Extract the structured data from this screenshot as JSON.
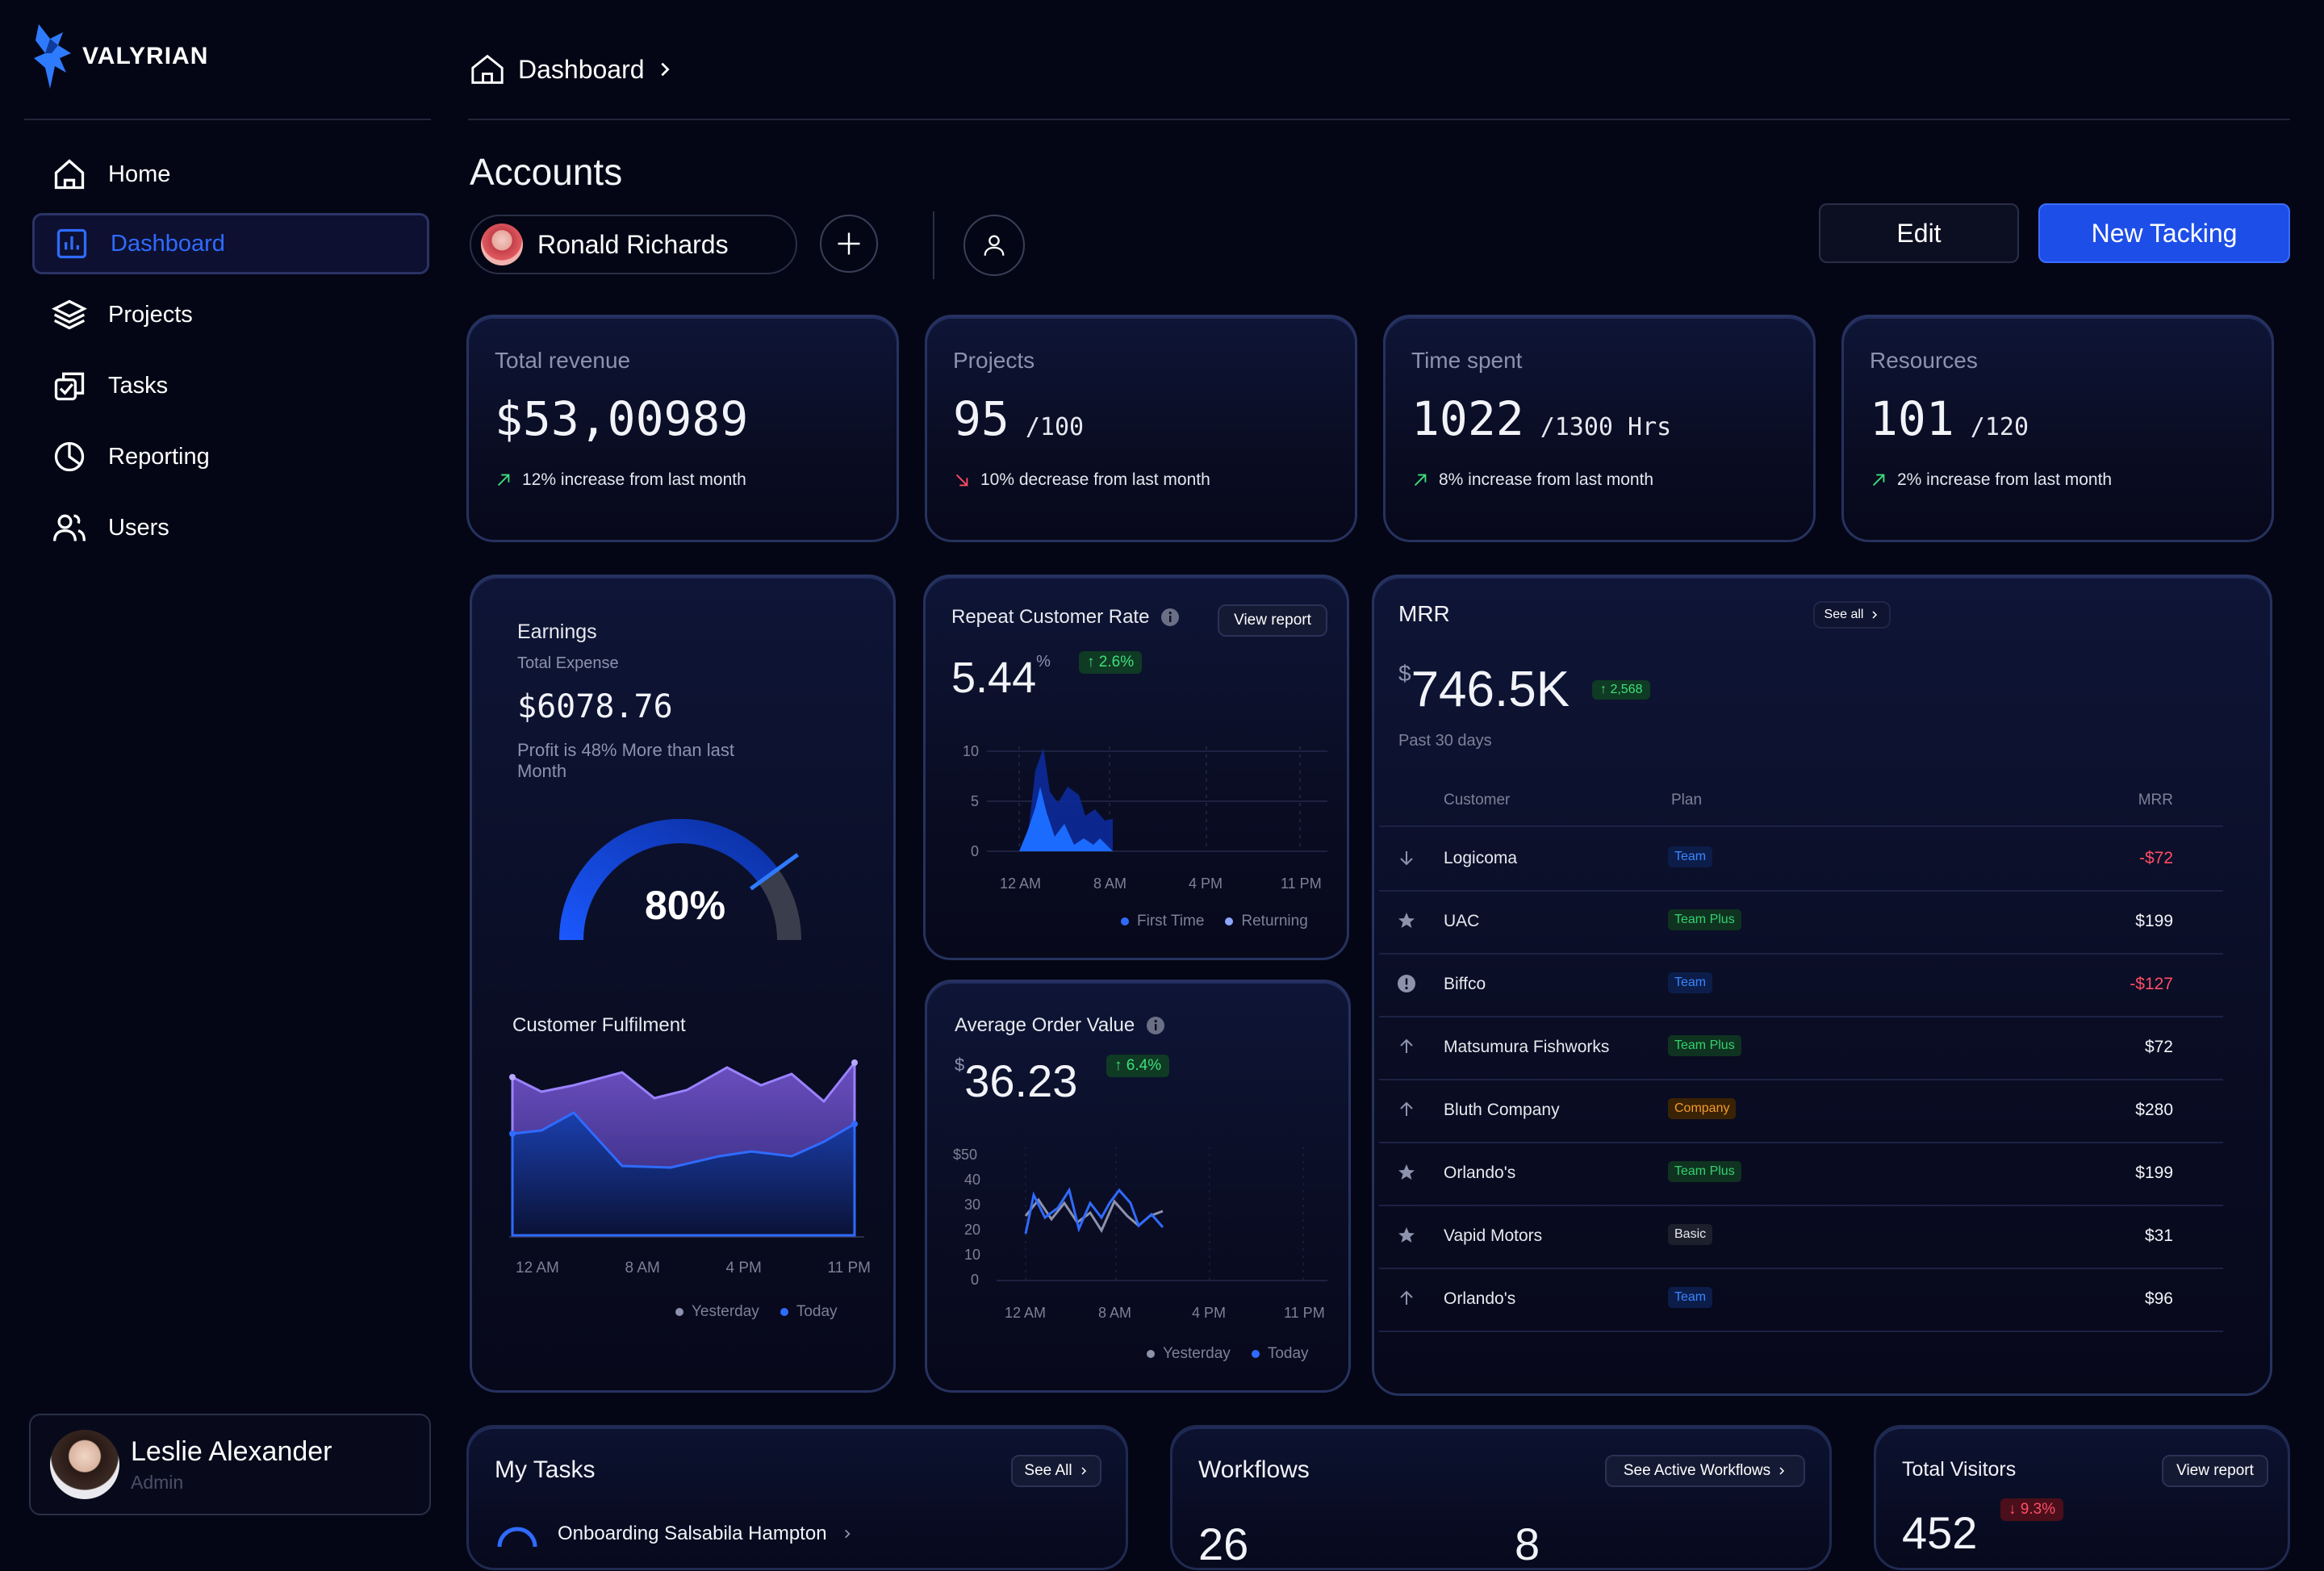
{
  "brand": {
    "name": "VALYRIAN"
  },
  "sidebar": {
    "items": [
      {
        "label": "Home",
        "icon": "home-icon"
      },
      {
        "label": "Dashboard",
        "icon": "bar-chart-icon",
        "active": true
      },
      {
        "label": "Projects",
        "icon": "layers-icon"
      },
      {
        "label": "Tasks",
        "icon": "task-check-icon"
      },
      {
        "label": "Reporting",
        "icon": "pie-chart-icon"
      },
      {
        "label": "Users",
        "icon": "users-icon"
      }
    ],
    "user": {
      "name": "Leslie Alexander",
      "role": "Admin"
    }
  },
  "header": {
    "breadcrumb": "Dashboard"
  },
  "accounts": {
    "title": "Accounts",
    "selected_account": "Ronald Richards",
    "edit_label": "Edit",
    "new_label": "New Tacking"
  },
  "stats": [
    {
      "label": "Total revenue",
      "value": "$53,00989",
      "sub": "",
      "trend": "12% increase from last month",
      "direction": "up"
    },
    {
      "label": "Projects",
      "value": "95",
      "sub": "/100",
      "trend": "10% decrease from last month",
      "direction": "down"
    },
    {
      "label": "Time spent",
      "value": "1022",
      "sub": "/1300 Hrs",
      "trend": "8% increase from last month",
      "direction": "up"
    },
    {
      "label": "Resources",
      "value": "101",
      "sub": "/120",
      "trend": "2% increase from last month",
      "direction": "up"
    }
  ],
  "earnings": {
    "title": "Earnings",
    "subtitle": "Total Expense",
    "value": "$6078.76",
    "note": "Profit is 48% More than last Month",
    "gauge_percent": 80,
    "gauge_label": "80%"
  },
  "fulfilment": {
    "title": "Customer Fulfilment",
    "x_labels": [
      "12 AM",
      "8 AM",
      "4 PM",
      "11 PM"
    ],
    "legend": [
      "Yesterday",
      "Today"
    ]
  },
  "repeat_rate": {
    "title": "Repeat Customer Rate",
    "view_label": "View report",
    "value": "5.44",
    "unit": "%",
    "change": "↑ 2.6%",
    "y_labels": [
      "10",
      "5",
      "0"
    ],
    "x_labels": [
      "12 AM",
      "8 AM",
      "4 PM",
      "11 PM"
    ],
    "legend": [
      "First Time",
      "Returning"
    ]
  },
  "aov": {
    "title": "Average Order Value",
    "currency": "$",
    "value": "36.23",
    "change": "↑ 6.4%",
    "y_labels": [
      "$50",
      "40",
      "30",
      "20",
      "10",
      "0"
    ],
    "x_labels": [
      "12 AM",
      "8 AM",
      "4 PM",
      "11 PM"
    ],
    "legend": [
      "Yesterday",
      "Today"
    ]
  },
  "mrr": {
    "title": "MRR",
    "see_all": "See all",
    "currency": "$",
    "value": "746.5K",
    "change": "↑ 2,568",
    "period": "Past 30 days",
    "columns": [
      "Customer",
      "Plan",
      "MRR"
    ],
    "rows": [
      {
        "icon": "arrow-down-icon",
        "customer": "Logicoma",
        "plan": "Team",
        "plan_class": "plan-team",
        "mrr": "-$72",
        "negative": true
      },
      {
        "icon": "star-icon",
        "customer": "UAC",
        "plan": "Team Plus",
        "plan_class": "plan-teamplus",
        "mrr": "$199",
        "negative": false
      },
      {
        "icon": "alert-icon",
        "customer": "Biffco",
        "plan": "Team",
        "plan_class": "plan-team",
        "mrr": "-$127",
        "negative": true
      },
      {
        "icon": "arrow-up-icon",
        "customer": "Matsumura Fishworks",
        "plan": "Team Plus",
        "plan_class": "plan-teamplus",
        "mrr": "$72",
        "negative": false
      },
      {
        "icon": "arrow-up-icon",
        "customer": "Bluth Company",
        "plan": "Company",
        "plan_class": "plan-company",
        "mrr": "$280",
        "negative": false
      },
      {
        "icon": "star-icon",
        "customer": "Orlando's",
        "plan": "Team Plus",
        "plan_class": "plan-teamplus",
        "mrr": "$199",
        "negative": false
      },
      {
        "icon": "star-icon",
        "customer": "Vapid Motors",
        "plan": "Basic",
        "plan_class": "plan-basic",
        "mrr": "$31",
        "negative": false
      },
      {
        "icon": "arrow-up-icon",
        "customer": "Orlando's",
        "plan": "Team",
        "plan_class": "plan-team",
        "mrr": "$96",
        "negative": false
      }
    ]
  },
  "tasks": {
    "title": "My Tasks",
    "see_all": "See All",
    "first_task": "Onboarding Salsabila Hampton"
  },
  "workflows": {
    "title": "Workflows",
    "see_label": "See Active Workflows",
    "count_a": "26",
    "count_b": "8"
  },
  "visitors": {
    "title": "Total Visitors",
    "view_label": "View report",
    "value": "452",
    "change": "↓ 9.3%"
  },
  "colors": {
    "accent": "#2f6bff",
    "positive": "#3ee07a",
    "negative": "#ff4d64",
    "background": "#050615"
  }
}
